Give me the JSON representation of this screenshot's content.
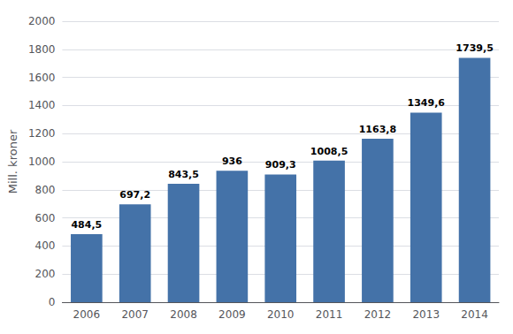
{
  "chart_data": {
    "type": "bar",
    "ylabel": "Mill. kroner",
    "categories": [
      "2006",
      "2007",
      "2008",
      "2009",
      "2010",
      "2011",
      "2012",
      "2013",
      "2014"
    ],
    "values": [
      484.5,
      697.2,
      843.5,
      936.0,
      909.3,
      1008.5,
      1163.8,
      1349.6,
      1739.5
    ],
    "value_labels": [
      "484,5",
      "697,2",
      "843,5",
      "936",
      "909,3",
      "1008,5",
      "1163,8",
      "1349,6",
      "1739,5"
    ],
    "data_labels": true,
    "color": "#4472a8",
    "ylim": [
      0,
      2000
    ],
    "yticks": [
      0,
      200,
      400,
      600,
      800,
      1000,
      1200,
      1400,
      1600,
      1800,
      2000
    ],
    "grid": true
  }
}
